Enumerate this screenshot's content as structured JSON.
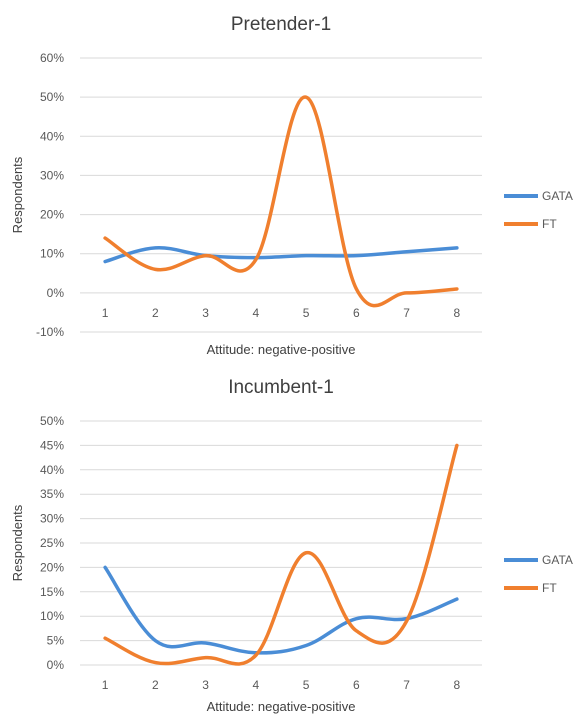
{
  "chart_data": [
    {
      "type": "line",
      "title": "Pretender-1",
      "xlabel": "Attitude: negative-positive",
      "ylabel": "Respondents",
      "x": [
        1,
        2,
        3,
        4,
        5,
        6,
        7,
        8
      ],
      "x_tick_labels": [
        "1",
        "2",
        "3",
        "4",
        "5",
        "6",
        "7",
        "8"
      ],
      "y_tick_labels": [
        "-10%",
        "0%",
        "10%",
        "20%",
        "30%",
        "40%",
        "50%",
        "60%"
      ],
      "ylim": [
        -10,
        60
      ],
      "grid": true,
      "legend": "right",
      "series": [
        {
          "name": "GATA",
          "color": "#4a8dd6",
          "values": [
            8,
            11.5,
            9.5,
            9,
            9.5,
            9.5,
            10.5,
            11.5
          ]
        },
        {
          "name": "FT",
          "color": "#f07f2e",
          "values": [
            14,
            6,
            9.5,
            8.5,
            50,
            1,
            0,
            1
          ]
        }
      ]
    },
    {
      "type": "line",
      "title": "Incumbent-1",
      "xlabel": "Attitude: negative-positive",
      "ylabel": "Respondents",
      "x": [
        1,
        2,
        3,
        4,
        5,
        6,
        7,
        8
      ],
      "x_tick_labels": [
        "1",
        "2",
        "3",
        "4",
        "5",
        "6",
        "7",
        "8"
      ],
      "y_tick_labels": [
        "0%",
        "5%",
        "10%",
        "15%",
        "20%",
        "25%",
        "30%",
        "35%",
        "40%",
        "45%",
        "50%"
      ],
      "ylim": [
        0,
        50
      ],
      "grid": true,
      "legend": "right",
      "series": [
        {
          "name": "GATA",
          "color": "#4a8dd6",
          "values": [
            20,
            5,
            4.5,
            2.5,
            4,
            9.5,
            9.5,
            13.5
          ]
        },
        {
          "name": "FT",
          "color": "#f07f2e",
          "values": [
            5.5,
            0.5,
            1.5,
            2,
            23,
            7,
            9,
            45
          ]
        }
      ]
    }
  ]
}
